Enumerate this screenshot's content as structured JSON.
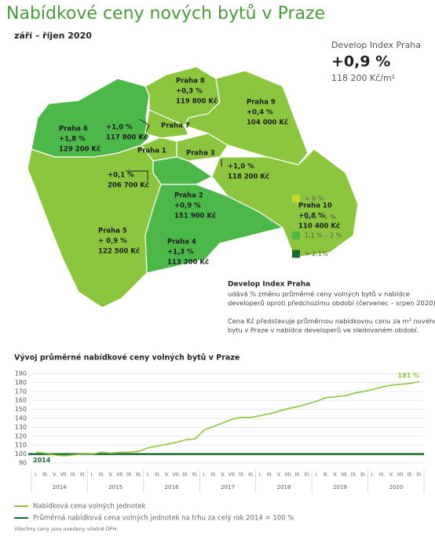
{
  "header": {
    "title": "Nabídkové ceny nových bytů v Praze",
    "subtitle": "září – říjen 2020"
  },
  "index_box": {
    "title": "Develop Index Praha",
    "change": "+0,9 %",
    "price": "118 200 Kč/m²"
  },
  "map": {
    "districts": [
      {
        "name": "Praha 1",
        "change": "+0,1 %",
        "price": "206 700 Kč",
        "color": "#8cc63f"
      },
      {
        "name": "Praha 2",
        "change": "+0,9 %",
        "price": "151 900 Kč",
        "color": "#4cb84a"
      },
      {
        "name": "Praha 3",
        "change": "+1,0 %",
        "price": "118 200 Kč",
        "color": "#8cc63f"
      },
      {
        "name": "Praha 4",
        "change": "+1,3 %",
        "price": "113 200 Kč",
        "color": "#4cb84a"
      },
      {
        "name": "Praha 5",
        "change": "+ 0,9 %",
        "price": "122 500 Kč",
        "color": "#8cc63f"
      },
      {
        "name": "Praha 6",
        "change": "+1,8 %",
        "price": "129 200 Kč",
        "color": "#4cb84a"
      },
      {
        "name": "Praha 7",
        "change": "+1,0 %",
        "price": "117 800 Kč",
        "color": "#8cc63f"
      },
      {
        "name": "Praha 8",
        "change": "+0,3 %",
        "price": "119 800 Kč",
        "color": "#8cc63f"
      },
      {
        "name": "Praha 9",
        "change": "+0,4 %",
        "price": "104 000 Kč",
        "color": "#8cc63f"
      },
      {
        "name": "Praha 10",
        "change": "+0,8 %",
        "price": "110 400 Kč",
        "color": "#8cc63f"
      }
    ],
    "legend": [
      {
        "label": "< 0 %",
        "color": "#c8d92b"
      },
      {
        "label": "0 % – 1 %",
        "color": "#8cc63f"
      },
      {
        "label": "1,1 % – 2 %",
        "color": "#4cb84a"
      },
      {
        "label": "> 2,1%",
        "color": "#1a6b30"
      }
    ]
  },
  "note": {
    "title": "Develop Index Praha",
    "lines": [
      "udává % změnu průměrné ceny volných bytů v nabídce",
      "developerů oproti předchozímu období (červenec – srpen 2020).",
      "",
      "Cena Kč představuje průměrnou nabídkovou cenu za m² nového",
      "bytu v Praze v nabídce developerů ve sledovaném období."
    ]
  },
  "chart_data": {
    "type": "line",
    "title": "Vývoj průměrné nabídkové ceny volných bytů v Praze",
    "categories": [
      "I.",
      "III.",
      "V.",
      "VII.",
      "IX.",
      "XI.",
      "I.",
      "III.",
      "V.",
      "VII.",
      "IX.",
      "XI.",
      "I.",
      "III.",
      "V.",
      "VII.",
      "IX.",
      "XI.",
      "I.",
      "III.",
      "V.",
      "VII.",
      "IX.",
      "XI.",
      "I.",
      "III.",
      "V.",
      "VII.",
      "IX.",
      "XI.",
      "I.",
      "III.",
      "V.",
      "VII.",
      "IX.",
      "XI.",
      "I.",
      "III.",
      "V.",
      "VII.",
      "IX.",
      "XI."
    ],
    "x_groups": [
      "2014",
      "2015",
      "2016",
      "2017",
      "2018",
      "2019",
      "2020"
    ],
    "series": [
      {
        "name": "Nabídková cena volných jednotek",
        "color": "#8cc63f",
        "values": [
          102,
          101,
          99,
          98,
          99,
          100,
          100,
          102,
          101,
          102,
          102,
          103,
          107,
          109,
          111,
          113,
          116,
          117,
          127,
          131,
          135,
          139,
          141,
          141,
          143,
          145,
          148,
          151,
          153,
          156,
          159,
          163,
          164,
          165,
          168,
          170,
          172,
          175,
          177,
          178,
          179,
          181
        ],
        "value_labels": [
          null,
          null,
          null,
          null,
          null,
          null,
          null,
          null,
          null,
          null,
          null,
          null,
          null,
          null,
          null,
          null,
          null,
          null,
          null,
          null,
          null,
          null,
          null,
          null,
          null,
          null,
          null,
          null,
          null,
          null,
          null,
          null,
          null,
          null,
          null,
          null,
          null,
          null,
          null,
          null,
          null,
          "181 %"
        ]
      }
    ],
    "reference_line": {
      "value": 100,
      "label": "2014",
      "name": "Průměrná nabídková cena volných jednotek na trhu za celý rok 2014 = 100 %",
      "color": "#1a6b30"
    },
    "ylim": [
      90,
      190
    ],
    "yticks": [
      90,
      100,
      110,
      120,
      130,
      140,
      150,
      160,
      170,
      180,
      190
    ],
    "grid": true,
    "footnote": "Všechny ceny jsou uvedeny včetně DPH."
  }
}
